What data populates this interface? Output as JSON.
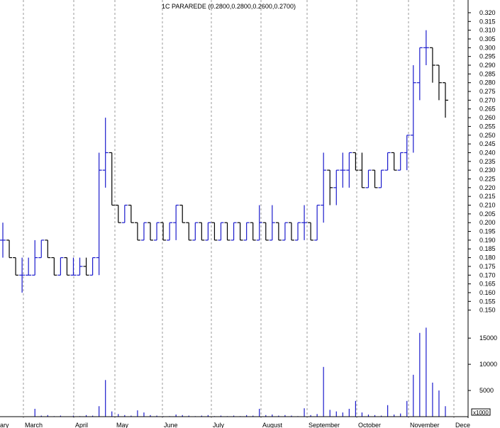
{
  "chart_data": {
    "type": "ohlc",
    "title": "1C PARAREDE (0.2800,0.2800,0.2600,0.2700)",
    "colors": {
      "up": "#1a1acc",
      "down": "#000000",
      "volume": "#1a1acc",
      "grid": "#9a9a9a",
      "background": "#ffffff"
    },
    "grid": true,
    "price_axis": {
      "position": "right",
      "ylim": [
        0.145,
        0.322
      ],
      "ticks": [
        "0.320",
        "0.315",
        "0.310",
        "0.305",
        "0.300",
        "0.295",
        "0.290",
        "0.285",
        "0.280",
        "0.275",
        "0.270",
        "0.265",
        "0.260",
        "0.255",
        "0.250",
        "0.245",
        "0.240",
        "0.235",
        "0.230",
        "0.225",
        "0.220",
        "0.215",
        "0.210",
        "0.205",
        "0.200",
        "0.195",
        "0.190",
        "0.185",
        "0.180",
        "0.175",
        "0.170",
        "0.165",
        "0.160",
        "0.155",
        "0.150"
      ]
    },
    "volume_axis": {
      "ylim": [
        0,
        18000
      ],
      "ticks": [
        "15000",
        "10000",
        "5000"
      ],
      "multiplier": "x1000"
    },
    "x_axis": {
      "labels": [
        "ary",
        "March",
        "April",
        "May",
        "June",
        "July",
        "August",
        "September",
        "October",
        "November",
        "Dece"
      ]
    },
    "bars": [
      {
        "o": 0.19,
        "h": 0.2,
        "l": 0.18,
        "c": 0.19,
        "v": 0
      },
      {
        "o": 0.19,
        "h": 0.19,
        "l": 0.18,
        "c": 0.18,
        "v": 0
      },
      {
        "o": 0.18,
        "h": 0.18,
        "l": 0.17,
        "c": 0.17,
        "v": 0
      },
      {
        "o": 0.17,
        "h": 0.18,
        "l": 0.16,
        "c": 0.17,
        "v": 0
      },
      {
        "o": 0.17,
        "h": 0.18,
        "l": 0.17,
        "c": 0.17,
        "v": 0
      },
      {
        "o": 0.17,
        "h": 0.19,
        "l": 0.17,
        "c": 0.18,
        "v": 1500
      },
      {
        "o": 0.18,
        "h": 0.19,
        "l": 0.18,
        "c": 0.19,
        "v": 200
      },
      {
        "o": 0.19,
        "h": 0.19,
        "l": 0.18,
        "c": 0.18,
        "v": 300
      },
      {
        "o": 0.18,
        "h": 0.18,
        "l": 0.17,
        "c": 0.17,
        "v": 100
      },
      {
        "o": 0.17,
        "h": 0.18,
        "l": 0.17,
        "c": 0.18,
        "v": 200
      },
      {
        "o": 0.18,
        "h": 0.18,
        "l": 0.17,
        "c": 0.17,
        "v": 0
      },
      {
        "o": 0.17,
        "h": 0.18,
        "l": 0.17,
        "c": 0.17,
        "v": 200
      },
      {
        "o": 0.17,
        "h": 0.18,
        "l": 0.17,
        "c": 0.175,
        "v": 100
      },
      {
        "o": 0.175,
        "h": 0.18,
        "l": 0.17,
        "c": 0.17,
        "v": 300
      },
      {
        "o": 0.17,
        "h": 0.18,
        "l": 0.17,
        "c": 0.18,
        "v": 200
      },
      {
        "o": 0.18,
        "h": 0.24,
        "l": 0.17,
        "c": 0.23,
        "v": 2000
      },
      {
        "o": 0.23,
        "h": 0.26,
        "l": 0.22,
        "c": 0.24,
        "v": 7000
      },
      {
        "o": 0.24,
        "h": 0.24,
        "l": 0.21,
        "c": 0.21,
        "v": 1000
      },
      {
        "o": 0.21,
        "h": 0.21,
        "l": 0.2,
        "c": 0.2,
        "v": 500
      },
      {
        "o": 0.2,
        "h": 0.21,
        "l": 0.2,
        "c": 0.21,
        "v": 300
      },
      {
        "o": 0.21,
        "h": 0.21,
        "l": 0.2,
        "c": 0.2,
        "v": 200
      },
      {
        "o": 0.2,
        "h": 0.2,
        "l": 0.19,
        "c": 0.19,
        "v": 1200
      },
      {
        "o": 0.19,
        "h": 0.2,
        "l": 0.19,
        "c": 0.2,
        "v": 800
      },
      {
        "o": 0.2,
        "h": 0.2,
        "l": 0.19,
        "c": 0.19,
        "v": 300
      },
      {
        "o": 0.19,
        "h": 0.2,
        "l": 0.19,
        "c": 0.2,
        "v": 200
      },
      {
        "o": 0.2,
        "h": 0.2,
        "l": 0.19,
        "c": 0.19,
        "v": 100
      },
      {
        "o": 0.19,
        "h": 0.2,
        "l": 0.19,
        "c": 0.2,
        "v": 100
      },
      {
        "o": 0.2,
        "h": 0.21,
        "l": 0.19,
        "c": 0.21,
        "v": 400
      },
      {
        "o": 0.21,
        "h": 0.21,
        "l": 0.2,
        "c": 0.2,
        "v": 300
      },
      {
        "o": 0.2,
        "h": 0.2,
        "l": 0.19,
        "c": 0.19,
        "v": 200
      },
      {
        "o": 0.19,
        "h": 0.2,
        "l": 0.19,
        "c": 0.2,
        "v": 100
      },
      {
        "o": 0.2,
        "h": 0.2,
        "l": 0.19,
        "c": 0.19,
        "v": 200
      },
      {
        "o": 0.19,
        "h": 0.2,
        "l": 0.19,
        "c": 0.2,
        "v": 300
      },
      {
        "o": 0.2,
        "h": 0.2,
        "l": 0.19,
        "c": 0.19,
        "v": 100
      },
      {
        "o": 0.19,
        "h": 0.2,
        "l": 0.19,
        "c": 0.2,
        "v": 200
      },
      {
        "o": 0.2,
        "h": 0.2,
        "l": 0.19,
        "c": 0.19,
        "v": 100
      },
      {
        "o": 0.19,
        "h": 0.2,
        "l": 0.19,
        "c": 0.2,
        "v": 200
      },
      {
        "o": 0.2,
        "h": 0.2,
        "l": 0.19,
        "c": 0.19,
        "v": 100
      },
      {
        "o": 0.19,
        "h": 0.2,
        "l": 0.19,
        "c": 0.2,
        "v": 300
      },
      {
        "o": 0.2,
        "h": 0.2,
        "l": 0.19,
        "c": 0.19,
        "v": 200
      },
      {
        "o": 0.19,
        "h": 0.21,
        "l": 0.19,
        "c": 0.2,
        "v": 1500
      },
      {
        "o": 0.2,
        "h": 0.2,
        "l": 0.19,
        "c": 0.19,
        "v": 300
      },
      {
        "o": 0.19,
        "h": 0.21,
        "l": 0.19,
        "c": 0.2,
        "v": 400
      },
      {
        "o": 0.2,
        "h": 0.2,
        "l": 0.19,
        "c": 0.19,
        "v": 200
      },
      {
        "o": 0.19,
        "h": 0.2,
        "l": 0.19,
        "c": 0.2,
        "v": 300
      },
      {
        "o": 0.2,
        "h": 0.2,
        "l": 0.19,
        "c": 0.19,
        "v": 200
      },
      {
        "o": 0.19,
        "h": 0.2,
        "l": 0.19,
        "c": 0.2,
        "v": 100
      },
      {
        "o": 0.2,
        "h": 0.21,
        "l": 0.19,
        "c": 0.2,
        "v": 1600
      },
      {
        "o": 0.2,
        "h": 0.2,
        "l": 0.19,
        "c": 0.19,
        "v": 300
      },
      {
        "o": 0.19,
        "h": 0.21,
        "l": 0.19,
        "c": 0.21,
        "v": 500
      },
      {
        "o": 0.21,
        "h": 0.24,
        "l": 0.2,
        "c": 0.23,
        "v": 9500
      },
      {
        "o": 0.23,
        "h": 0.23,
        "l": 0.21,
        "c": 0.22,
        "v": 1300
      },
      {
        "o": 0.22,
        "h": 0.23,
        "l": 0.21,
        "c": 0.23,
        "v": 1000
      },
      {
        "o": 0.23,
        "h": 0.24,
        "l": 0.22,
        "c": 0.23,
        "v": 800
      },
      {
        "o": 0.23,
        "h": 0.24,
        "l": 0.22,
        "c": 0.24,
        "v": 1500
      },
      {
        "o": 0.24,
        "h": 0.24,
        "l": 0.23,
        "c": 0.23,
        "v": 3000
      },
      {
        "o": 0.23,
        "h": 0.24,
        "l": 0.22,
        "c": 0.22,
        "v": 800
      },
      {
        "o": 0.22,
        "h": 0.23,
        "l": 0.22,
        "c": 0.23,
        "v": 400
      },
      {
        "o": 0.23,
        "h": 0.23,
        "l": 0.22,
        "c": 0.22,
        "v": 300
      },
      {
        "o": 0.22,
        "h": 0.23,
        "l": 0.22,
        "c": 0.23,
        "v": 200
      },
      {
        "o": 0.23,
        "h": 0.24,
        "l": 0.23,
        "c": 0.24,
        "v": 2200
      },
      {
        "o": 0.24,
        "h": 0.24,
        "l": 0.23,
        "c": 0.23,
        "v": 400
      },
      {
        "o": 0.23,
        "h": 0.24,
        "l": 0.23,
        "c": 0.24,
        "v": 600
      },
      {
        "o": 0.24,
        "h": 0.25,
        "l": 0.23,
        "c": 0.25,
        "v": 3000
      },
      {
        "o": 0.25,
        "h": 0.29,
        "l": 0.24,
        "c": 0.28,
        "v": 8000
      },
      {
        "o": 0.28,
        "h": 0.3,
        "l": 0.27,
        "c": 0.3,
        "v": 16000
      },
      {
        "o": 0.3,
        "h": 0.31,
        "l": 0.29,
        "c": 0.3,
        "v": 17000
      },
      {
        "o": 0.3,
        "h": 0.3,
        "l": 0.28,
        "c": 0.29,
        "v": 6500
      },
      {
        "o": 0.29,
        "h": 0.29,
        "l": 0.27,
        "c": 0.28,
        "v": 5000
      },
      {
        "o": 0.28,
        "h": 0.28,
        "l": 0.26,
        "c": 0.27,
        "v": 2000
      }
    ]
  }
}
